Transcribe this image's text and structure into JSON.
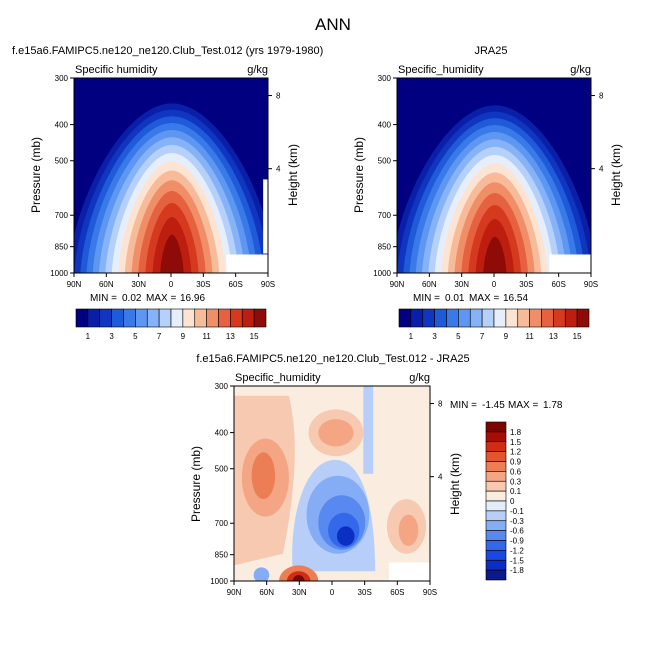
{
  "page": {
    "title": "ANN"
  },
  "colors": {
    "panel_scale": [
      "#000080",
      "#0a1fa8",
      "#1035c0",
      "#1f5ad8",
      "#3a7ae8",
      "#5d97f2",
      "#86b3f7",
      "#b5d0fa",
      "#e6eefb",
      "#fde3d2",
      "#f8bb9a",
      "#f08e68",
      "#e5613f",
      "#d63a1e",
      "#be1e10",
      "#8e0b07"
    ],
    "diff_scale": [
      "#0a1a8a",
      "#0b2fc2",
      "#1949e0",
      "#3468ea",
      "#5789f0",
      "#84adf5",
      "#b6cef8",
      "#e2ecfb",
      "#faecdf",
      "#f7c9b0",
      "#f3a584",
      "#ec7e56",
      "#e2552e",
      "#d02d13",
      "#a80d04",
      "#7a0502"
    ]
  },
  "chart_data": [
    {
      "type": "heatmap",
      "title": "f.e15a6.FAMIPC5.ne120_ne120.Club_Test.012 (yrs 1979-1980)",
      "subtitle_left": "Specific humidity",
      "subtitle_right": "g/kg",
      "xlabel": "",
      "ylabel": "Pressure (mb)",
      "ylabel_right": "Height (km)",
      "x_ticks": [
        "90N",
        "60N",
        "30N",
        "0",
        "30S",
        "60S",
        "90S"
      ],
      "y_ticks": [
        "300",
        "400",
        "500",
        "700",
        "850",
        "1000"
      ],
      "y_right_ticks": [
        "8",
        "4"
      ],
      "stats": {
        "min_label": "MIN =",
        "min": "0.02",
        "max_label": "MAX =",
        "max": "16.96"
      },
      "peak_value": 16.96,
      "levels": [
        "1",
        "3",
        "5",
        "7",
        "9",
        "11",
        "13",
        "15"
      ]
    },
    {
      "type": "heatmap",
      "title": "JRA25",
      "subtitle_left": "Specific_humidity",
      "subtitle_right": "g/kg",
      "xlabel": "",
      "ylabel": "Pressure (mb)",
      "ylabel_right": "Height (km)",
      "x_ticks": [
        "90N",
        "60N",
        "30N",
        "0",
        "30S",
        "60S",
        "90S"
      ],
      "y_ticks": [
        "300",
        "400",
        "500",
        "700",
        "850",
        "1000"
      ],
      "y_right_ticks": [
        "8",
        "4"
      ],
      "stats": {
        "min_label": "MIN =",
        "min": "0.01",
        "max_label": "MAX =",
        "max": "16.54"
      },
      "peak_value": 16.54,
      "levels": [
        "1",
        "3",
        "5",
        "7",
        "9",
        "11",
        "13",
        "15"
      ]
    },
    {
      "type": "heatmap",
      "title": "f.e15a6.FAMIPC5.ne120_ne120.Club_Test.012 - JRA25",
      "subtitle_left": "Specific_humidity",
      "subtitle_right": "g/kg",
      "xlabel": "",
      "ylabel": "Pressure (mb)",
      "ylabel_right": "Height (km)",
      "x_ticks": [
        "90N",
        "60N",
        "30N",
        "0",
        "30S",
        "60S",
        "90S"
      ],
      "y_ticks": [
        "300",
        "400",
        "500",
        "700",
        "850",
        "1000"
      ],
      "y_right_ticks": [
        "8",
        "4"
      ],
      "stats": {
        "min_label": "MIN =",
        "min": "-1.45",
        "max_label": "MAX =",
        "max": "1.78"
      },
      "levels": [
        "1.8",
        "1.5",
        "1.2",
        "0.9",
        "0.6",
        "0.3",
        "0.1",
        "0",
        "-0.1",
        "-0.3",
        "-0.6",
        "-0.9",
        "-1.2",
        "-1.5",
        "-1.8"
      ]
    }
  ]
}
